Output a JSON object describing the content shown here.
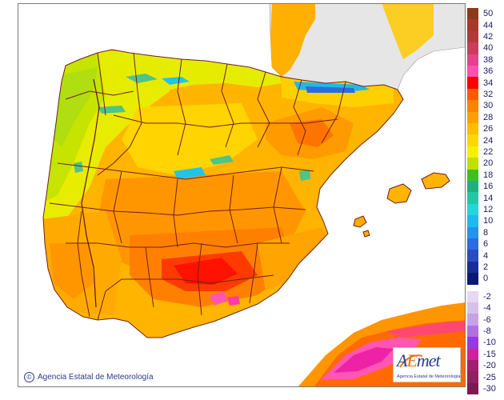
{
  "map": {
    "kind": "temperature-field",
    "region": "Iberian Peninsula and Balearic Islands",
    "colors": {
      "sea": "#ffffff",
      "foreign_land": "#e8e8e8",
      "border": "#6e1f1f",
      "base": "#ffb400",
      "mid_hot": "#ff8c00",
      "hot": "#ff6a00",
      "very_hot": "#ff1a00",
      "mild": "#ffd800",
      "cool": "#f2f200",
      "green": "#b8e400",
      "teal": "#4cc48a",
      "cyan": "#22c4e6",
      "pink": "#ff55b4",
      "magenta": "#ee22a6"
    }
  },
  "legend": {
    "items": [
      {
        "label": "50",
        "color": "#8b3a1a"
      },
      {
        "label": "44",
        "color": "#a33a2a"
      },
      {
        "label": "42",
        "color": "#b33a3a"
      },
      {
        "label": "40",
        "color": "#c83c5c"
      },
      {
        "label": "38",
        "color": "#e0448a"
      },
      {
        "label": "36",
        "color": "#ff4fb0"
      },
      {
        "label": "34",
        "color": "#ff0000"
      },
      {
        "label": "32",
        "color": "#ff5a00"
      },
      {
        "label": "30",
        "color": "#ff8200"
      },
      {
        "label": "28",
        "color": "#ffa000"
      },
      {
        "label": "26",
        "color": "#ffbe00"
      },
      {
        "label": "24",
        "color": "#ffd800"
      },
      {
        "label": "22",
        "color": "#f7f000"
      },
      {
        "label": "20",
        "color": "#c0e000"
      },
      {
        "label": "18",
        "color": "#40c020"
      },
      {
        "label": "16",
        "color": "#20b080"
      },
      {
        "label": "14",
        "color": "#20c8a8"
      },
      {
        "label": "12",
        "color": "#20d8d8"
      },
      {
        "label": "10",
        "color": "#20b8f0"
      },
      {
        "label": "8",
        "color": "#2890f0"
      },
      {
        "label": "6",
        "color": "#2c6ce0"
      },
      {
        "label": "4",
        "color": "#2a4cc0"
      },
      {
        "label": "2",
        "color": "#1a2c9a"
      },
      {
        "label": "0",
        "color": "#0a1a70"
      },
      {
        "label": "-2",
        "color": "#e6d8f0"
      },
      {
        "label": "-4",
        "color": "#d8c0ec"
      },
      {
        "label": "-6",
        "color": "#c8a0e8"
      },
      {
        "label": "-8",
        "color": "#b070e0"
      },
      {
        "label": "-10",
        "color": "#9838e0"
      },
      {
        "label": "-15",
        "color": "#d020a0"
      },
      {
        "label": "-20",
        "color": "#a02070"
      },
      {
        "label": "-25",
        "color": "#902060"
      },
      {
        "label": "-30",
        "color": "#7a1a50"
      }
    ]
  },
  "credit": {
    "icon": "copyright-icon",
    "text": "Agencia Estatal de Meteorología"
  },
  "logo": {
    "wordmark_a": "A",
    "wordmark_e": "E",
    "wordmark_rest": "met",
    "subtitle": "Agencia Estatal de Meteorología"
  }
}
